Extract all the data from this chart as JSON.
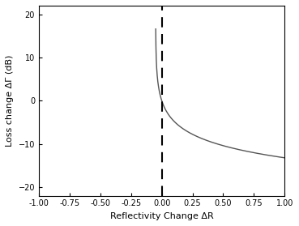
{
  "title": "",
  "xlabel": "Reflectivity Change ΔR",
  "ylabel": "Loss change ΔΓ (dB)",
  "xlim": [
    -1.0,
    1.0
  ],
  "ylim": [
    -22,
    22
  ],
  "yticks": [
    -20,
    -10,
    0,
    10,
    20
  ],
  "xticks": [
    -1.0,
    -0.75,
    -0.5,
    -0.25,
    0.0,
    0.25,
    0.5,
    0.75,
    1.0
  ],
  "vline_x": 0.0,
  "curve_color": "#555555",
  "background_color": "#ffffff",
  "R0": 0.05,
  "scale": 10.0
}
